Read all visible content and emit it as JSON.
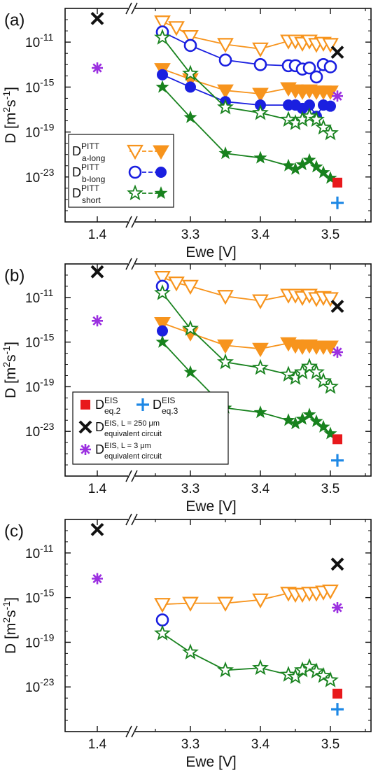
{
  "colors": {
    "orange": "#f7941d",
    "blue": "#1a1fe0",
    "green": "#18821e",
    "red": "#e8191c",
    "lightblue": "#1e88e5",
    "black": "#111111",
    "purple": "#9b30e0"
  },
  "chart_data": [
    {
      "panel": "(a)",
      "type": "scatter",
      "xlabel": "Ewe [V]",
      "ylabel": {
        "base": "D  [m",
        "sup1": "2",
        "mid": "s",
        "sup2": "-1",
        "end": "]"
      },
      "x_ticks": [
        "1.4",
        "3.3",
        "3.4",
        "3.5"
      ],
      "y_ticks": [
        {
          "base": "10",
          "exp": "-11"
        },
        {
          "base": "10",
          "exp": "-15"
        },
        {
          "base": "10",
          "exp": "-19"
        },
        {
          "base": "10",
          "exp": "-23"
        }
      ],
      "y_log": true,
      "x_axis_break": "between 1.4 and 3.25",
      "legend": [
        {
          "base": "D",
          "sup": "PITT",
          "sub": "a-long"
        },
        {
          "base": "D",
          "sup": "PITT",
          "sub": "b-long"
        },
        {
          "base": "D",
          "sup": "PITT",
          "sub": "short"
        }
      ],
      "series": [
        {
          "kind": "a_long_open",
          "color": "orange",
          "marker": "triangle-down-open",
          "line": true,
          "x": [
            3.26,
            3.28,
            3.3,
            3.35,
            3.4,
            3.44,
            3.45,
            3.46,
            3.47,
            3.48,
            3.49,
            3.5
          ],
          "y": [
            -9.2,
            -9.7,
            -10.5,
            -11.2,
            -11.6,
            -10.9,
            -10.9,
            -11.1,
            -10.9,
            -11.2,
            -11.1,
            -11.2
          ]
        },
        {
          "kind": "a_long_filled",
          "color": "orange",
          "marker": "triangle-down-filled",
          "line": true,
          "x": [
            3.26,
            3.3,
            3.35,
            3.4,
            3.44,
            3.45,
            3.46,
            3.47,
            3.48,
            3.49,
            3.5
          ],
          "y": [
            -13.4,
            -14.3,
            -15.3,
            -15.6,
            -15.1,
            -15.3,
            -15.4,
            -15.3,
            -15.4,
            -15.4,
            -15.4
          ]
        },
        {
          "kind": "b_long_open",
          "color": "blue",
          "marker": "circle-open",
          "line": true,
          "x": [
            3.26,
            3.3,
            3.35,
            3.4,
            3.44,
            3.45,
            3.46,
            3.47,
            3.48,
            3.49,
            3.5
          ],
          "y": [
            -10.1,
            -11.3,
            -12.6,
            -13.0,
            -13.1,
            -13.1,
            -13.4,
            -13.3,
            -14.1,
            -13.0,
            -13.2
          ]
        },
        {
          "kind": "b_long_filled",
          "color": "blue",
          "marker": "circle-filled",
          "line": true,
          "x": [
            3.26,
            3.3,
            3.35,
            3.4,
            3.44,
            3.45,
            3.46,
            3.47,
            3.48,
            3.49,
            3.5
          ],
          "y": [
            -13.9,
            -15.0,
            -16.3,
            -16.6,
            -16.6,
            -16.6,
            -16.9,
            -16.6,
            -17.6,
            -16.6,
            -16.7
          ]
        },
        {
          "kind": "short_open",
          "color": "green",
          "marker": "star-open",
          "line": true,
          "x": [
            3.26,
            3.3,
            3.35,
            3.4,
            3.44,
            3.45,
            3.46,
            3.47,
            3.48,
            3.49,
            3.5
          ],
          "y": [
            -10.6,
            -13.8,
            -16.8,
            -17.3,
            -17.9,
            -18.2,
            -17.9,
            -17.6,
            -17.9,
            -18.6,
            -19.1
          ]
        },
        {
          "kind": "short_filled",
          "color": "green",
          "marker": "star-filled",
          "line": true,
          "x": [
            3.26,
            3.3,
            3.35,
            3.4,
            3.44,
            3.45,
            3.46,
            3.47,
            3.48,
            3.49,
            3.5
          ],
          "y": [
            -15.0,
            -17.7,
            -20.9,
            -21.3,
            -22.0,
            -22.3,
            -21.9,
            -21.5,
            -22.1,
            -22.6,
            -23.1
          ]
        },
        {
          "kind": "eis_eq2",
          "color": "red",
          "marker": "square-filled",
          "line": false,
          "x": [
            3.51
          ],
          "y": [
            -23.5
          ]
        },
        {
          "kind": "eis_eq3",
          "color": "lightblue",
          "marker": "plus",
          "line": false,
          "x": [
            3.51
          ],
          "y": [
            -25.3
          ]
        },
        {
          "kind": "eis_250um",
          "color": "black",
          "marker": "x",
          "line": false,
          "x": [
            1.4,
            3.51
          ],
          "y": [
            -8.9,
            -11.9
          ]
        },
        {
          "kind": "eis_3um",
          "color": "purple",
          "marker": "asterisk",
          "line": false,
          "x": [
            1.4,
            3.51
          ],
          "y": [
            -13.3,
            -15.8
          ]
        }
      ]
    },
    {
      "panel": "(b)",
      "type": "scatter",
      "xlabel": "Ewe [V]",
      "ylabel": {
        "base": "D [m",
        "sup1": "2",
        "mid": "s",
        "sup2": "-1",
        "end": "]"
      },
      "x_ticks": [
        "1.4",
        "3.3",
        "3.4",
        "3.5"
      ],
      "y_ticks": [
        {
          "base": "10",
          "exp": "-11"
        },
        {
          "base": "10",
          "exp": "-15"
        },
        {
          "base": "10",
          "exp": "-19"
        },
        {
          "base": "10",
          "exp": "-23"
        }
      ],
      "y_log": true,
      "x_axis_break": "between 1.4 and 3.25",
      "legend": [
        {
          "base": "D",
          "sup": "EIS",
          "sub": "eq.2"
        },
        {
          "base": "D",
          "sup": "EIS",
          "sub": "eq.3"
        },
        {
          "base": "D",
          "sup": "EIS, L = 250 μm",
          "sub": "equivalent circuit"
        },
        {
          "base": "D",
          "sup": "EIS, L = 3 μm",
          "sub": "equivalent circuit"
        }
      ],
      "series": [
        {
          "kind": "a_long_open",
          "color": "orange",
          "marker": "triangle-down-open",
          "line": true,
          "x": [
            3.26,
            3.28,
            3.3,
            3.35,
            3.4,
            3.44,
            3.45,
            3.46,
            3.47,
            3.48,
            3.49,
            3.5
          ],
          "y": [
            -9.2,
            -9.7,
            -10.0,
            -10.9,
            -11.3,
            -10.8,
            -10.8,
            -11.0,
            -10.8,
            -11.1,
            -11.0,
            -11.1
          ]
        },
        {
          "kind": "a_long_filled",
          "color": "orange",
          "marker": "triangle-down-filled",
          "line": true,
          "x": [
            3.26,
            3.3,
            3.35,
            3.4,
            3.44,
            3.45,
            3.46,
            3.47,
            3.48,
            3.49,
            3.5
          ],
          "y": [
            -13.3,
            -14.2,
            -15.3,
            -15.6,
            -15.1,
            -15.3,
            -15.4,
            -15.3,
            -15.4,
            -15.4,
            -15.4
          ]
        },
        {
          "kind": "b_long_open",
          "color": "blue",
          "marker": "circle-open",
          "line": false,
          "x": [
            3.26
          ],
          "y": [
            -10.0
          ]
        },
        {
          "kind": "b_long_filled",
          "color": "blue",
          "marker": "circle-filled",
          "line": false,
          "x": [
            3.26
          ],
          "y": [
            -14.0
          ]
        },
        {
          "kind": "short_open",
          "color": "green",
          "marker": "star-open",
          "line": true,
          "x": [
            3.26,
            3.3,
            3.35,
            3.4,
            3.44,
            3.45,
            3.46,
            3.47,
            3.48,
            3.49,
            3.5
          ],
          "y": [
            -10.6,
            -13.8,
            -16.8,
            -17.3,
            -17.9,
            -18.2,
            -17.7,
            -17.2,
            -17.7,
            -18.5,
            -19.0
          ]
        },
        {
          "kind": "short_filled",
          "color": "green",
          "marker": "star-filled",
          "line": true,
          "x": [
            3.26,
            3.3,
            3.35,
            3.4,
            3.44,
            3.45,
            3.46,
            3.47,
            3.48,
            3.49,
            3.5
          ],
          "y": [
            -15.0,
            -17.7,
            -20.9,
            -21.3,
            -22.0,
            -22.3,
            -21.9,
            -21.5,
            -22.1,
            -22.6,
            -23.2
          ]
        },
        {
          "kind": "eis_eq2",
          "color": "red",
          "marker": "square-filled",
          "line": false,
          "x": [
            3.51
          ],
          "y": [
            -23.7
          ]
        },
        {
          "kind": "eis_eq3",
          "color": "lightblue",
          "marker": "plus",
          "line": false,
          "x": [
            3.51
          ],
          "y": [
            -25.6
          ]
        },
        {
          "kind": "eis_250um",
          "color": "black",
          "marker": "x",
          "line": false,
          "x": [
            1.4,
            3.51
          ],
          "y": [
            -8.7,
            -11.8
          ]
        },
        {
          "kind": "eis_3um",
          "color": "purple",
          "marker": "asterisk",
          "line": false,
          "x": [
            1.4,
            3.51
          ],
          "y": [
            -13.1,
            -15.9
          ]
        }
      ]
    },
    {
      "panel": "(c)",
      "type": "scatter",
      "xlabel": "Ewe [V]",
      "ylabel": {
        "base": "D  [m",
        "sup1": "2",
        "mid": "s",
        "sup2": "-1",
        "end": "]"
      },
      "x_ticks": [
        "1.4",
        "3.3",
        "3.4",
        "3.5"
      ],
      "y_ticks": [
        {
          "base": "10",
          "exp": "-11"
        },
        {
          "base": "10",
          "exp": "-15"
        },
        {
          "base": "10",
          "exp": "-19"
        },
        {
          "base": "10",
          "exp": "-23"
        }
      ],
      "y_log": true,
      "x_axis_break": "between 1.4 and 3.25",
      "legend": [],
      "series": [
        {
          "kind": "a_long_open",
          "color": "orange",
          "marker": "triangle-down-open",
          "line": true,
          "x": [
            3.26,
            3.3,
            3.35,
            3.4,
            3.44,
            3.45,
            3.46,
            3.47,
            3.48,
            3.49,
            3.5
          ],
          "y": [
            -15.6,
            -15.5,
            -15.5,
            -15.2,
            -14.6,
            -14.7,
            -14.7,
            -14.6,
            -14.6,
            -14.5,
            -14.4
          ]
        },
        {
          "kind": "b_long_open",
          "color": "blue",
          "marker": "circle-open",
          "line": false,
          "x": [
            3.26
          ],
          "y": [
            -17.0
          ]
        },
        {
          "kind": "short_open",
          "color": "green",
          "marker": "star-open",
          "line": true,
          "x": [
            3.26,
            3.3,
            3.35,
            3.4,
            3.44,
            3.45,
            3.46,
            3.47,
            3.48,
            3.49,
            3.5
          ],
          "y": [
            -18.2,
            -19.9,
            -21.5,
            -21.3,
            -21.9,
            -22.1,
            -21.5,
            -21.2,
            -21.6,
            -22.0,
            -22.4
          ]
        },
        {
          "kind": "eis_eq2",
          "color": "red",
          "marker": "square-filled",
          "line": false,
          "x": [
            3.51
          ],
          "y": [
            -23.6
          ]
        },
        {
          "kind": "eis_eq3",
          "color": "lightblue",
          "marker": "plus",
          "line": false,
          "x": [
            3.51
          ],
          "y": [
            -25.0
          ]
        },
        {
          "kind": "eis_250um",
          "color": "black",
          "marker": "x",
          "line": false,
          "x": [
            1.4,
            3.51
          ],
          "y": [
            -8.9,
            -12.0
          ]
        },
        {
          "kind": "eis_3um",
          "color": "purple",
          "marker": "asterisk",
          "line": false,
          "x": [
            1.4,
            3.51
          ],
          "y": [
            -13.3,
            -15.9
          ]
        }
      ]
    }
  ]
}
